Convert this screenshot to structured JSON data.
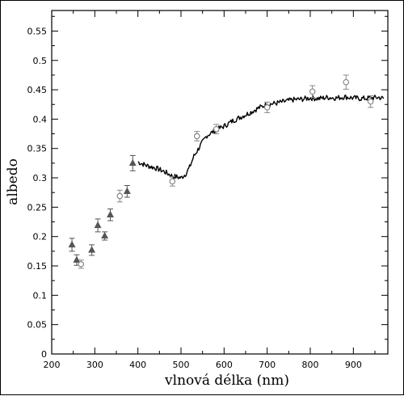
{
  "chart_data": {
    "type": "scatter",
    "xlabel": "vlnová délka (nm)",
    "ylabel": "albedo",
    "xlim": [
      200,
      980
    ],
    "ylim": [
      0,
      0.585
    ],
    "x_ticks": [
      {
        "value": 200,
        "label": "200"
      },
      {
        "value": 300,
        "label": "300"
      },
      {
        "value": 400,
        "label": "400"
      },
      {
        "value": 500,
        "label": "500"
      },
      {
        "value": 600,
        "label": "600"
      },
      {
        "value": 700,
        "label": "700"
      },
      {
        "value": 800,
        "label": "800"
      },
      {
        "value": 900,
        "label": "900"
      }
    ],
    "y_ticks": [
      {
        "value": 0,
        "label": "0"
      },
      {
        "value": 0.05,
        "label": "0.05"
      },
      {
        "value": 0.1,
        "label": "0.1"
      },
      {
        "value": 0.15,
        "label": "0.15"
      },
      {
        "value": 0.2,
        "label": "0.2"
      },
      {
        "value": 0.25,
        "label": "0.25"
      },
      {
        "value": 0.3,
        "label": "0.3"
      },
      {
        "value": 0.35,
        "label": "0.35"
      },
      {
        "value": 0.4,
        "label": "0.4"
      },
      {
        "value": 0.45,
        "label": "0.45"
      },
      {
        "value": 0.5,
        "label": "0.5"
      },
      {
        "value": 0.55,
        "label": "0.55"
      }
    ],
    "series": [
      {
        "marker": "triangle",
        "color": "#555555",
        "points": [
          {
            "x": 247,
            "y": 0.186,
            "err": 0.011
          },
          {
            "x": 258,
            "y": 0.16,
            "err": 0.009
          },
          {
            "x": 293,
            "y": 0.177,
            "err": 0.009
          },
          {
            "x": 307,
            "y": 0.219,
            "err": 0.011
          },
          {
            "x": 323,
            "y": 0.201,
            "err": 0.007
          },
          {
            "x": 336,
            "y": 0.237,
            "err": 0.01
          },
          {
            "x": 375,
            "y": 0.277,
            "err": 0.01
          },
          {
            "x": 388,
            "y": 0.325,
            "err": 0.013
          }
        ]
      },
      {
        "marker": "circle",
        "color": "#888888",
        "points": [
          {
            "x": 268,
            "y": 0.153,
            "err": 0.007
          },
          {
            "x": 358,
            "y": 0.269,
            "err": 0.01
          },
          {
            "x": 480,
            "y": 0.294,
            "err": 0.008
          },
          {
            "x": 537,
            "y": 0.371,
            "err": 0.008
          },
          {
            "x": 582,
            "y": 0.383,
            "err": 0.008
          },
          {
            "x": 700,
            "y": 0.42,
            "err": 0.009
          },
          {
            "x": 805,
            "y": 0.447,
            "err": 0.01
          },
          {
            "x": 883,
            "y": 0.463,
            "err": 0.012
          },
          {
            "x": 940,
            "y": 0.43,
            "err": 0.01
          }
        ]
      },
      {
        "type": "line",
        "color": "#000000",
        "x": [
          400,
          420,
          440,
          460,
          480,
          500,
          510,
          520,
          530,
          545,
          560,
          580,
          600,
          620,
          640,
          660,
          680,
          700,
          720,
          740,
          760,
          780,
          800,
          820,
          840,
          860,
          880,
          900,
          920,
          940,
          960,
          970
        ],
        "y": [
          0.327,
          0.321,
          0.317,
          0.311,
          0.303,
          0.3,
          0.306,
          0.318,
          0.337,
          0.355,
          0.372,
          0.381,
          0.388,
          0.397,
          0.404,
          0.411,
          0.419,
          0.425,
          0.427,
          0.43,
          0.433,
          0.434,
          0.436,
          0.435,
          0.437,
          0.436,
          0.438,
          0.436,
          0.435,
          0.436,
          0.437,
          0.435
        ]
      }
    ],
    "grid": false
  }
}
